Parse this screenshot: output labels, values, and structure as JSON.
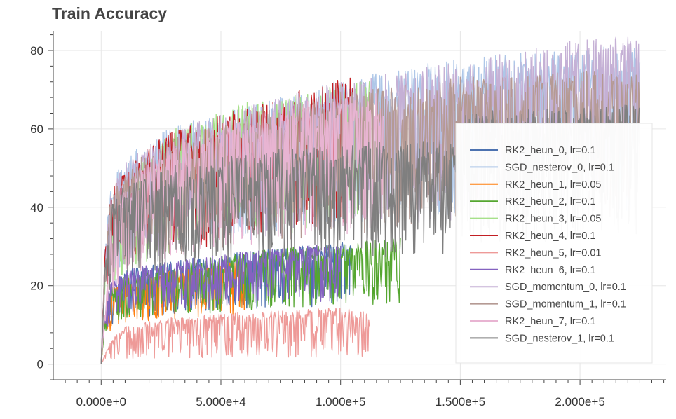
{
  "chart_data": {
    "type": "line",
    "title": "Train Accuracy",
    "xlabel": "",
    "ylabel": "",
    "xlim": [
      -20000,
      236000
    ],
    "ylim": [
      -4,
      85
    ],
    "x_ticks": [
      {
        "value": 0,
        "label": "0.000e+0"
      },
      {
        "value": 50000,
        "label": "5.000e+4"
      },
      {
        "value": 100000,
        "label": "1.000e+5"
      },
      {
        "value": 150000,
        "label": "1.500e+5"
      },
      {
        "value": 200000,
        "label": "2.000e+5"
      }
    ],
    "y_ticks": [
      {
        "value": 0,
        "label": "0"
      },
      {
        "value": 20,
        "label": "20"
      },
      {
        "value": 40,
        "label": "40"
      },
      {
        "value": 60,
        "label": "60"
      },
      {
        "value": 80,
        "label": "80"
      }
    ],
    "grid": true,
    "legend_position": "right",
    "series": [
      {
        "name": "RK2_heun_0, lr=0.1",
        "color": "#4c72b0",
        "x_end": 105000,
        "noise_low": 0.45,
        "noise_high": 0.15,
        "curve": [
          [
            0,
            0
          ],
          [
            1500,
            12
          ],
          [
            4000,
            18
          ],
          [
            10000,
            21
          ],
          [
            30000,
            23
          ],
          [
            60000,
            25
          ],
          [
            100000,
            27
          ],
          [
            105000,
            27
          ]
        ]
      },
      {
        "name": "SGD_nesterov_0, lr=0.1",
        "color": "#aec7e8",
        "x_end": 225000,
        "noise_low": 0.45,
        "noise_high": 0.15,
        "curve": [
          [
            0,
            0
          ],
          [
            1500,
            28
          ],
          [
            4000,
            40
          ],
          [
            10000,
            46
          ],
          [
            30000,
            53
          ],
          [
            60000,
            57
          ],
          [
            100000,
            63
          ],
          [
            150000,
            68
          ],
          [
            200000,
            70
          ],
          [
            225000,
            71
          ]
        ]
      },
      {
        "name": "RK2_heun_1, lr=0.05",
        "color": "#ff7f0e",
        "x_end": 60000,
        "noise_low": 0.45,
        "noise_high": 0.15,
        "curve": [
          [
            0,
            0
          ],
          [
            1500,
            10
          ],
          [
            4000,
            16
          ],
          [
            10000,
            19
          ],
          [
            30000,
            21
          ],
          [
            60000,
            23
          ]
        ]
      },
      {
        "name": "RK2_heun_2, lr=0.1",
        "color": "#55a630",
        "x_end": 125000,
        "noise_low": 0.45,
        "noise_high": 0.15,
        "curve": [
          [
            0,
            0
          ],
          [
            1500,
            10
          ],
          [
            4000,
            17
          ],
          [
            10000,
            20
          ],
          [
            30000,
            22
          ],
          [
            60000,
            25
          ],
          [
            100000,
            27
          ],
          [
            125000,
            28
          ]
        ]
      },
      {
        "name": "RK2_heun_3, lr=0.05",
        "color": "#a6e08a",
        "x_end": 112000,
        "noise_low": 0.45,
        "noise_high": 0.15,
        "curve": [
          [
            0,
            0
          ],
          [
            1500,
            22
          ],
          [
            4000,
            35
          ],
          [
            10000,
            42
          ],
          [
            30000,
            52
          ],
          [
            60000,
            58
          ],
          [
            100000,
            62
          ],
          [
            112000,
            63
          ]
        ]
      },
      {
        "name": "RK2_heun_4, lr=0.1",
        "color": "#c21f24",
        "x_end": 105000,
        "noise_low": 0.45,
        "noise_high": 0.15,
        "curve": [
          [
            0,
            0
          ],
          [
            1500,
            26
          ],
          [
            4000,
            38
          ],
          [
            10000,
            44
          ],
          [
            30000,
            52
          ],
          [
            60000,
            57
          ],
          [
            100000,
            64
          ],
          [
            105000,
            65
          ]
        ]
      },
      {
        "name": "RK2_heun_5, lr=0.01",
        "color": "#ee9a98",
        "x_end": 112000,
        "noise_low": 0.85,
        "noise_high": 0.2,
        "curve": [
          [
            0,
            0
          ],
          [
            1500,
            2
          ],
          [
            4000,
            5
          ],
          [
            10000,
            8
          ],
          [
            30000,
            10
          ],
          [
            60000,
            11
          ],
          [
            100000,
            12
          ],
          [
            112000,
            11
          ]
        ]
      },
      {
        "name": "RK2_heun_6, lr=0.1",
        "color": "#8462c0",
        "x_end": 100000,
        "noise_low": 0.4,
        "noise_high": 0.15,
        "curve": [
          [
            0,
            0
          ],
          [
            1500,
            12
          ],
          [
            4000,
            18
          ],
          [
            10000,
            21
          ],
          [
            30000,
            23
          ],
          [
            60000,
            25
          ],
          [
            100000,
            27
          ]
        ]
      },
      {
        "name": "SGD_momentum_0, lr=0.1",
        "color": "#c5b0d5",
        "x_end": 225000,
        "noise_low": 0.45,
        "noise_high": 0.15,
        "curve": [
          [
            0,
            0
          ],
          [
            1500,
            26
          ],
          [
            4000,
            38
          ],
          [
            10000,
            45
          ],
          [
            30000,
            52
          ],
          [
            60000,
            57
          ],
          [
            100000,
            63
          ],
          [
            150000,
            67
          ],
          [
            200000,
            72
          ],
          [
            225000,
            73
          ]
        ]
      },
      {
        "name": "SGD_momentum_1, lr=0.1",
        "color": "#b59a94",
        "x_end": 225000,
        "noise_low": 0.45,
        "noise_high": 0.15,
        "curve": [
          [
            0,
            0
          ],
          [
            1500,
            25
          ],
          [
            4000,
            37
          ],
          [
            10000,
            44
          ],
          [
            30000,
            50
          ],
          [
            60000,
            55
          ],
          [
            100000,
            60
          ],
          [
            150000,
            64
          ],
          [
            200000,
            65
          ],
          [
            225000,
            65
          ]
        ]
      },
      {
        "name": "RK2_heun_7, lr=0.1",
        "color": "#e8b4d2",
        "x_end": 118000,
        "noise_low": 0.45,
        "noise_high": 0.15,
        "curve": [
          [
            0,
            0
          ],
          [
            1500,
            12
          ],
          [
            4000,
            30
          ],
          [
            10000,
            40
          ],
          [
            30000,
            50
          ],
          [
            60000,
            55
          ],
          [
            100000,
            60
          ],
          [
            118000,
            60
          ]
        ]
      },
      {
        "name": "SGD_nesterov_1, lr=0.1",
        "color": "#7f7f7f",
        "x_end": 225000,
        "noise_low": 0.45,
        "noise_high": 0.15,
        "curve": [
          [
            0,
            0
          ],
          [
            1500,
            22
          ],
          [
            4000,
            35
          ],
          [
            10000,
            40
          ],
          [
            30000,
            44
          ],
          [
            60000,
            47
          ],
          [
            100000,
            49
          ],
          [
            149000,
            50
          ],
          [
            151000,
            56
          ],
          [
            200000,
            57
          ],
          [
            225000,
            58
          ]
        ]
      }
    ]
  }
}
